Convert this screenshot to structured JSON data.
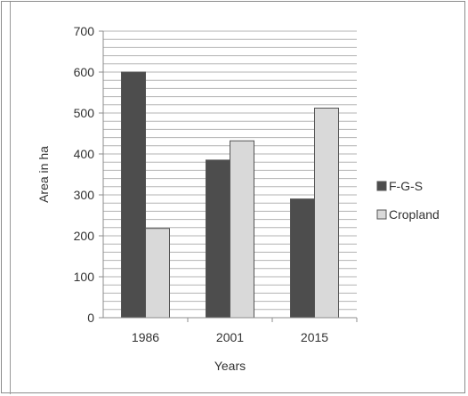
{
  "chart_data": {
    "type": "bar",
    "categories": [
      "1986",
      "2001",
      "2015"
    ],
    "series": [
      {
        "name": "F-G-S",
        "values": [
          600,
          385,
          290
        ],
        "color": "#4d4d4d"
      },
      {
        "name": "Cropland",
        "values": [
          218,
          432,
          512
        ],
        "color": "#d9d9d9"
      }
    ],
    "xlabel": "Years",
    "ylabel": "Area in ha",
    "ylim": [
      0,
      700
    ],
    "yticks": [
      0,
      100,
      200,
      300,
      400,
      500,
      600,
      700
    ],
    "minor_grid_step": 20,
    "grid": true,
    "legend": "right"
  }
}
